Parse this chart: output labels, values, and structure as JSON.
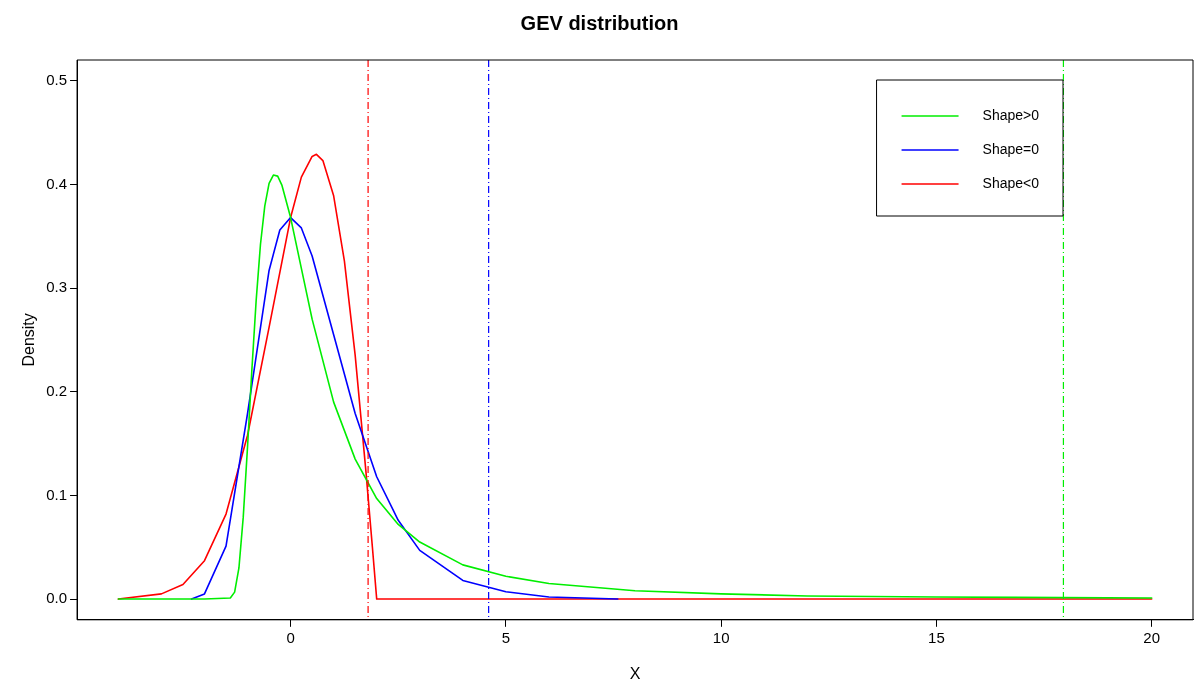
{
  "chart_data": {
    "type": "line",
    "title": "GEV distribution",
    "xlabel": "X",
    "ylabel": "Density",
    "xlim": [
      -4.96,
      20.96
    ],
    "ylim": [
      -0.02,
      0.52
    ],
    "xticks": [
      0,
      5,
      10,
      15,
      20
    ],
    "yticks": [
      {
        "value": 0,
        "label": "0.0"
      },
      {
        "value": 0.1,
        "label": "0.1"
      },
      {
        "value": 0.2,
        "label": "0.2"
      },
      {
        "value": 0.3,
        "label": "0.3"
      },
      {
        "value": 0.4,
        "label": "0.4"
      },
      {
        "value": 0.5,
        "label": "0.5"
      }
    ],
    "grid": false,
    "legend": "top right",
    "marker": "none",
    "line_style": "solid",
    "series": [
      {
        "name": "Shape>0",
        "color": "#00ee00",
        "x": [
          -4,
          -2,
          -1.4,
          -1.3,
          -1.2,
          -1.1,
          -1,
          -0.9,
          -0.8,
          -0.7,
          -0.6,
          -0.5,
          -0.4,
          -0.3,
          -0.2,
          0,
          0.25,
          0.5,
          1,
          1.5,
          2,
          2.5,
          3,
          4,
          5,
          6,
          8,
          10,
          12,
          15,
          20
        ],
        "values": [
          0,
          0,
          0.001,
          0.0067,
          0.03,
          0.079,
          0.147,
          0.221,
          0.288,
          0.342,
          0.379,
          0.401,
          0.409,
          0.408,
          0.399,
          0.368,
          0.319,
          0.27,
          0.19,
          0.135,
          0.097,
          0.072,
          0.055,
          0.033,
          0.022,
          0.015,
          0.008,
          0.005,
          0.003,
          0.002,
          0.001
        ]
      },
      {
        "name": "Shape=0",
        "color": "#0000ff",
        "x": [
          -2.3,
          -2,
          -1.5,
          -1,
          -0.5,
          -0.25,
          0,
          0.25,
          0.5,
          1,
          1.5,
          2,
          2.5,
          3,
          4,
          5,
          6,
          7.6
        ],
        "values": [
          0,
          0.005,
          0.051,
          0.179,
          0.317,
          0.356,
          0.368,
          0.358,
          0.331,
          0.255,
          0.179,
          0.118,
          0.076,
          0.047,
          0.018,
          0.007,
          0.002,
          0
        ]
      },
      {
        "name": "Shape<0",
        "color": "#ff0000",
        "x": [
          -4,
          -3,
          -2.5,
          -2,
          -1.5,
          -1,
          -0.5,
          0,
          0.25,
          0.5,
          0.6,
          0.75,
          1,
          1.25,
          1.5,
          1.75,
          1.9,
          2,
          20
        ],
        "values": [
          0,
          0.005,
          0.014,
          0.037,
          0.082,
          0.158,
          0.262,
          0.368,
          0.407,
          0.427,
          0.429,
          0.423,
          0.389,
          0.326,
          0.235,
          0.123,
          0.05,
          0,
          0
        ]
      }
    ],
    "ref_lines": [
      {
        "axis": "x",
        "value": 1.8,
        "color": "#ff0000",
        "line_style": "dashed"
      },
      {
        "axis": "x",
        "value": 4.6,
        "color": "#0000ff",
        "line_style": "dashed"
      },
      {
        "axis": "x",
        "value": 17.95,
        "color": "#00ee00",
        "line_style": "dashed"
      }
    ]
  }
}
